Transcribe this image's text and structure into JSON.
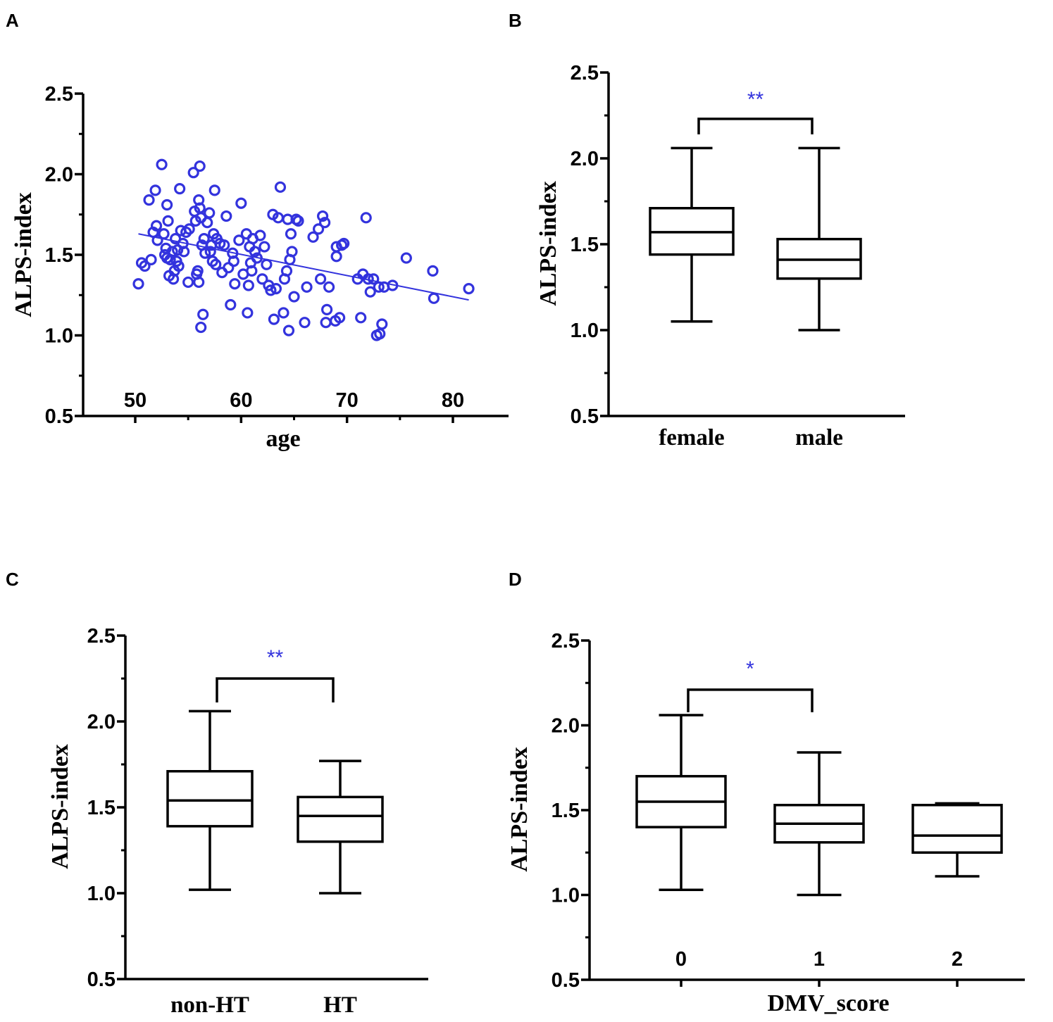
{
  "colors": {
    "accent": "#3333dd",
    "axis": "#000000"
  },
  "chart_data": [
    {
      "panel": "A",
      "type": "scatter",
      "xlabel": "age",
      "ylabel": "ALPS-index",
      "xlim": [
        45,
        85
      ],
      "ylim": [
        0.5,
        2.5
      ],
      "xticks": [
        "50",
        "60",
        "70",
        "80"
      ],
      "xtick_values": [
        50,
        60,
        70,
        80
      ],
      "yticks": [
        "0.5",
        "1.0",
        "1.5",
        "2.0",
        "2.5"
      ],
      "ytick_values": [
        0.5,
        1.0,
        1.5,
        2.0,
        2.5
      ],
      "regression": {
        "x": [
          50.3,
          81.5
        ],
        "y": [
          1.63,
          1.22
        ]
      },
      "points": [
        [
          50.3,
          1.32
        ],
        [
          50.6,
          1.45
        ],
        [
          50.9,
          1.43
        ],
        [
          51.3,
          1.84
        ],
        [
          51.5,
          1.47
        ],
        [
          51.7,
          1.64
        ],
        [
          51.9,
          1.9
        ],
        [
          52.0,
          1.68
        ],
        [
          52.1,
          1.59
        ],
        [
          52.5,
          2.06
        ],
        [
          52.7,
          1.63
        ],
        [
          52.8,
          1.5
        ],
        [
          52.9,
          1.54
        ],
        [
          53.0,
          1.81
        ],
        [
          53.0,
          1.48
        ],
        [
          53.1,
          1.71
        ],
        [
          53.2,
          1.37
        ],
        [
          53.3,
          1.47
        ],
        [
          53.5,
          1.52
        ],
        [
          53.6,
          1.35
        ],
        [
          53.7,
          1.4
        ],
        [
          53.8,
          1.6
        ],
        [
          53.9,
          1.46
        ],
        [
          54.0,
          1.53
        ],
        [
          54.1,
          1.43
        ],
        [
          54.2,
          1.91
        ],
        [
          54.3,
          1.65
        ],
        [
          54.5,
          1.57
        ],
        [
          54.6,
          1.52
        ],
        [
          54.8,
          1.64
        ],
        [
          55.0,
          1.33
        ],
        [
          55.1,
          1.66
        ],
        [
          55.5,
          2.01
        ],
        [
          55.6,
          1.77
        ],
        [
          55.7,
          1.71
        ],
        [
          55.8,
          1.38
        ],
        [
          55.9,
          1.4
        ],
        [
          56.0,
          1.84
        ],
        [
          56.0,
          1.33
        ],
        [
          56.1,
          1.79
        ],
        [
          56.1,
          2.05
        ],
        [
          56.2,
          1.05
        ],
        [
          56.2,
          1.73
        ],
        [
          56.3,
          1.56
        ],
        [
          56.4,
          1.13
        ],
        [
          56.5,
          1.6
        ],
        [
          56.6,
          1.51
        ],
        [
          56.8,
          1.7
        ],
        [
          57.0,
          1.76
        ],
        [
          57.1,
          1.52
        ],
        [
          57.2,
          1.56
        ],
        [
          57.3,
          1.46
        ],
        [
          57.4,
          1.63
        ],
        [
          57.5,
          1.9
        ],
        [
          57.6,
          1.44
        ],
        [
          57.7,
          1.6
        ],
        [
          58.0,
          1.57
        ],
        [
          58.2,
          1.39
        ],
        [
          58.4,
          1.56
        ],
        [
          58.6,
          1.74
        ],
        [
          58.8,
          1.42
        ],
        [
          59.0,
          1.19
        ],
        [
          59.2,
          1.51
        ],
        [
          59.3,
          1.46
        ],
        [
          59.4,
          1.32
        ],
        [
          59.8,
          1.59
        ],
        [
          60.0,
          1.82
        ],
        [
          60.2,
          1.38
        ],
        [
          60.5,
          1.63
        ],
        [
          60.6,
          1.14
        ],
        [
          60.7,
          1.31
        ],
        [
          60.8,
          1.55
        ],
        [
          60.9,
          1.45
        ],
        [
          61.0,
          1.4
        ],
        [
          61.1,
          1.6
        ],
        [
          61.3,
          1.52
        ],
        [
          61.5,
          1.48
        ],
        [
          61.8,
          1.62
        ],
        [
          62.0,
          1.35
        ],
        [
          62.2,
          1.55
        ],
        [
          62.4,
          1.44
        ],
        [
          62.6,
          1.31
        ],
        [
          62.8,
          1.28
        ],
        [
          63.0,
          1.75
        ],
        [
          63.1,
          1.1
        ],
        [
          63.3,
          1.29
        ],
        [
          63.5,
          1.73
        ],
        [
          63.7,
          1.92
        ],
        [
          64.0,
          1.14
        ],
        [
          64.1,
          1.35
        ],
        [
          64.3,
          1.4
        ],
        [
          64.4,
          1.72
        ],
        [
          64.5,
          1.03
        ],
        [
          64.6,
          1.47
        ],
        [
          64.7,
          1.63
        ],
        [
          64.8,
          1.52
        ],
        [
          65.0,
          1.24
        ],
        [
          65.2,
          1.72
        ],
        [
          65.4,
          1.71
        ],
        [
          66.0,
          1.08
        ],
        [
          66.2,
          1.3
        ],
        [
          66.8,
          1.61
        ],
        [
          67.3,
          1.66
        ],
        [
          67.5,
          1.35
        ],
        [
          67.7,
          1.74
        ],
        [
          67.9,
          1.7
        ],
        [
          68.0,
          1.08
        ],
        [
          68.1,
          1.16
        ],
        [
          68.3,
          1.3
        ],
        [
          68.9,
          1.09
        ],
        [
          69.0,
          1.55
        ],
        [
          69.0,
          1.49
        ],
        [
          69.3,
          1.11
        ],
        [
          69.5,
          1.56
        ],
        [
          69.7,
          1.57
        ],
        [
          71.0,
          1.35
        ],
        [
          71.3,
          1.11
        ],
        [
          71.5,
          1.38
        ],
        [
          71.8,
          1.73
        ],
        [
          72.0,
          1.35
        ],
        [
          72.2,
          1.27
        ],
        [
          72.5,
          1.35
        ],
        [
          72.8,
          1.0
        ],
        [
          73.0,
          1.3
        ],
        [
          73.1,
          1.01
        ],
        [
          73.3,
          1.07
        ],
        [
          73.5,
          1.3
        ],
        [
          74.3,
          1.31
        ],
        [
          75.6,
          1.48
        ],
        [
          78.1,
          1.4
        ],
        [
          78.2,
          1.23
        ],
        [
          81.5,
          1.29
        ]
      ]
    },
    {
      "panel": "B",
      "type": "box",
      "xlabel": "",
      "ylabel": "ALPS-index",
      "ylim": [
        0.5,
        2.5
      ],
      "yticks": [
        "0.5",
        "1.0",
        "1.5",
        "2.0",
        "2.5"
      ],
      "ytick_values": [
        0.5,
        1.0,
        1.5,
        2.0,
        2.5
      ],
      "categories": [
        "female",
        "male"
      ],
      "boxes": [
        {
          "whisker_low": 1.05,
          "q1": 1.44,
          "median": 1.57,
          "q3": 1.71,
          "whisker_high": 2.06
        },
        {
          "whisker_low": 1.0,
          "q1": 1.3,
          "median": 1.41,
          "q3": 1.53,
          "whisker_high": 2.06
        }
      ],
      "significance": [
        {
          "from": 0,
          "to": 1,
          "label": "**",
          "y": 2.23
        }
      ]
    },
    {
      "panel": "C",
      "type": "box",
      "xlabel": "",
      "ylabel": "ALPS-index",
      "ylim": [
        0.5,
        2.5
      ],
      "yticks": [
        "0.5",
        "1.0",
        "1.5",
        "2.0",
        "2.5"
      ],
      "ytick_values": [
        0.5,
        1.0,
        1.5,
        2.0,
        2.5
      ],
      "categories": [
        "non-HT",
        "HT"
      ],
      "boxes": [
        {
          "whisker_low": 1.02,
          "q1": 1.39,
          "median": 1.54,
          "q3": 1.71,
          "whisker_high": 2.06
        },
        {
          "whisker_low": 1.0,
          "q1": 1.3,
          "median": 1.45,
          "q3": 1.56,
          "whisker_high": 1.77
        }
      ],
      "significance": [
        {
          "from": 0,
          "to": 1,
          "label": "**",
          "y": 2.25
        }
      ]
    },
    {
      "panel": "D",
      "type": "box",
      "xlabel": "DMV_score",
      "ylabel": "ALPS-index",
      "ylim": [
        0.5,
        2.5
      ],
      "yticks": [
        "0.5",
        "1.0",
        "1.5",
        "2.0",
        "2.5"
      ],
      "ytick_values": [
        0.5,
        1.0,
        1.5,
        2.0,
        2.5
      ],
      "categories": [
        "0",
        "1",
        "2"
      ],
      "boxes": [
        {
          "whisker_low": 1.03,
          "q1": 1.4,
          "median": 1.55,
          "q3": 1.7,
          "whisker_high": 2.06
        },
        {
          "whisker_low": 1.0,
          "q1": 1.31,
          "median": 1.42,
          "q3": 1.53,
          "whisker_high": 1.84
        },
        {
          "whisker_low": 1.11,
          "q1": 1.25,
          "median": 1.35,
          "q3": 1.53,
          "whisker_high": 1.54
        }
      ],
      "significance": [
        {
          "from": 0,
          "to": 1,
          "label": "*",
          "y": 2.21
        }
      ]
    }
  ]
}
